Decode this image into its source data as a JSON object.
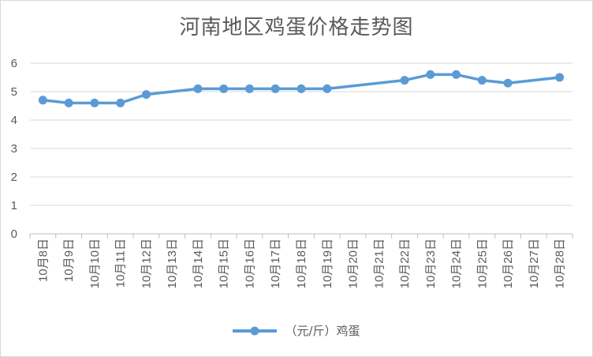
{
  "chart_data": {
    "type": "line",
    "title": "河南地区鸡蛋价格走势图",
    "categories": [
      "10月8日",
      "10月9日",
      "10月10日",
      "10月11日",
      "10月12日",
      "10月13日",
      "10月14日",
      "10月15日",
      "10月16日",
      "10月17日",
      "10月18日",
      "10月19日",
      "10月20日",
      "10月21日",
      "10月22日",
      "10月23日",
      "10月24日",
      "10月25日",
      "10月26日",
      "10月27日",
      "10月28日"
    ],
    "series": [
      {
        "name": "（元/斤）鸡蛋",
        "color": "#5b9bd5",
        "values": [
          4.7,
          4.6,
          4.6,
          4.6,
          4.9,
          null,
          5.1,
          5.1,
          5.1,
          5.1,
          5.1,
          5.1,
          null,
          null,
          5.4,
          5.6,
          5.6,
          5.4,
          5.3,
          null,
          5.5
        ]
      }
    ],
    "ylim": [
      0,
      6
    ],
    "yticks": [
      "0",
      "1",
      "2",
      "3",
      "4",
      "5",
      "6"
    ],
    "grid": true,
    "legend": "bottom"
  }
}
